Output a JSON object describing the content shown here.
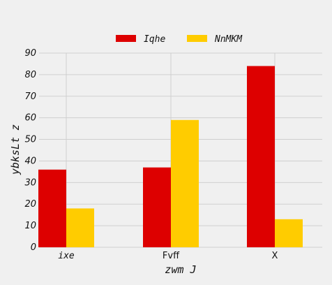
{
  "chart_data": {
    "type": "bar",
    "categories": [
      "ixe",
      "Fvff",
      "X"
    ],
    "series": [
      {
        "name": "Iqhe",
        "values": [
          36,
          37,
          84
        ],
        "color": "#dd0000"
      },
      {
        "name": "NnMKM",
        "values": [
          18,
          59,
          13
        ],
        "color": "#ffcc00"
      }
    ],
    "xlabel": "zwm J",
    "ylabel": "ybksLt  z",
    "ylim": [
      0,
      90
    ],
    "yticks": [
      0,
      10,
      20,
      30,
      40,
      50,
      60,
      70,
      80,
      90
    ],
    "grid": true,
    "legend_position": "top-center"
  }
}
